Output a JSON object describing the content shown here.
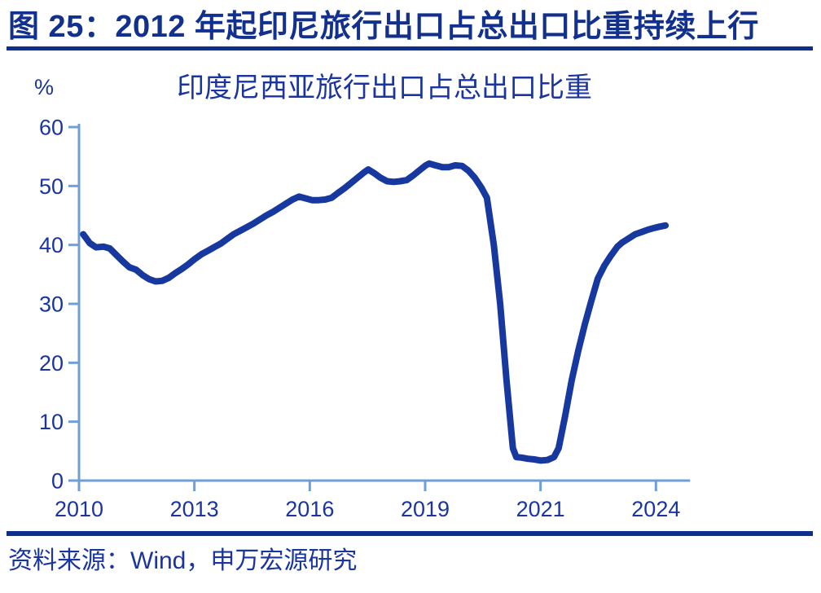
{
  "figure": {
    "header": "图 25：2012 年起印尼旅行出口占总出口比重持续上行",
    "source": "资料来源：Wind，申万宏源研究"
  },
  "colors": {
    "header_navy": "#12308e",
    "divider_navy": "#0c2e8c",
    "text_navy": "#1a35a0",
    "axis_blue": "#6f9fd8",
    "line_navy": "#16389f"
  },
  "chart_data": {
    "type": "line",
    "title": "印度尼西亚旅行出口占总出口比重",
    "unit_label": "%",
    "ylabel": "",
    "xlabel": "",
    "ylim": [
      0,
      60
    ],
    "y_ticks": [
      0,
      10,
      20,
      30,
      40,
      50,
      60
    ],
    "x_tick_labels": [
      "2010",
      "2013",
      "2016",
      "2019",
      "2021",
      "2024"
    ],
    "x_tick_years": [
      2010,
      2013,
      2016,
      2019,
      2021,
      2024
    ],
    "grid": false,
    "legend": "none",
    "series": [
      {
        "name": "印度尼西亚旅行出口占总出口比重",
        "points": [
          [
            2010.11,
            41.8
          ],
          [
            2010.28,
            40.3
          ],
          [
            2010.44,
            39.6
          ],
          [
            2010.64,
            39.7
          ],
          [
            2010.8,
            39.4
          ],
          [
            2010.97,
            38.3
          ],
          [
            2011.14,
            37.2
          ],
          [
            2011.31,
            36.2
          ],
          [
            2011.48,
            35.8
          ],
          [
            2011.65,
            34.9
          ],
          [
            2011.82,
            34.2
          ],
          [
            2011.99,
            33.8
          ],
          [
            2012.16,
            33.9
          ],
          [
            2012.33,
            34.4
          ],
          [
            2012.5,
            35.2
          ],
          [
            2012.67,
            35.9
          ],
          [
            2012.84,
            36.7
          ],
          [
            2013.01,
            37.6
          ],
          [
            2013.18,
            38.4
          ],
          [
            2013.35,
            39.0
          ],
          [
            2013.51,
            39.6
          ],
          [
            2013.68,
            40.2
          ],
          [
            2013.85,
            41.0
          ],
          [
            2014.02,
            41.8
          ],
          [
            2014.19,
            42.4
          ],
          [
            2014.36,
            43.0
          ],
          [
            2014.53,
            43.6
          ],
          [
            2014.7,
            44.3
          ],
          [
            2014.87,
            45.0
          ],
          [
            2015.04,
            45.6
          ],
          [
            2015.21,
            46.3
          ],
          [
            2015.38,
            47.0
          ],
          [
            2015.55,
            47.7
          ],
          [
            2015.72,
            48.2
          ],
          [
            2015.89,
            47.9
          ],
          [
            2016.06,
            47.6
          ],
          [
            2016.23,
            47.6
          ],
          [
            2016.4,
            47.7
          ],
          [
            2016.57,
            48.0
          ],
          [
            2016.73,
            48.8
          ],
          [
            2016.9,
            49.6
          ],
          [
            2017.07,
            50.5
          ],
          [
            2017.24,
            51.4
          ],
          [
            2017.41,
            52.3
          ],
          [
            2017.52,
            52.8
          ],
          [
            2017.67,
            52.2
          ],
          [
            2017.84,
            51.4
          ],
          [
            2018.01,
            50.8
          ],
          [
            2018.18,
            50.7
          ],
          [
            2018.35,
            50.8
          ],
          [
            2018.52,
            51.0
          ],
          [
            2018.69,
            51.8
          ],
          [
            2018.86,
            52.7
          ],
          [
            2019.01,
            53.5
          ],
          [
            2019.07,
            53.8
          ],
          [
            2019.18,
            53.5
          ],
          [
            2019.3,
            53.2
          ],
          [
            2019.41,
            53.2
          ],
          [
            2019.52,
            53.5
          ],
          [
            2019.64,
            53.4
          ],
          [
            2019.75,
            52.6
          ],
          [
            2019.86,
            51.4
          ],
          [
            2019.97,
            49.8
          ],
          [
            2020.07,
            48.0
          ],
          [
            2020.19,
            40.0
          ],
          [
            2020.3,
            30.0
          ],
          [
            2020.41,
            17.0
          ],
          [
            2020.52,
            5.5
          ],
          [
            2020.58,
            4.0
          ],
          [
            2020.67,
            3.9
          ],
          [
            2020.78,
            3.7
          ],
          [
            2020.89,
            3.6
          ],
          [
            2021.01,
            3.4
          ],
          [
            2021.18,
            3.5
          ],
          [
            2021.35,
            4.0
          ],
          [
            2021.47,
            5.5
          ],
          [
            2021.64,
            11.0
          ],
          [
            2021.81,
            17.0
          ],
          [
            2021.98,
            22.0
          ],
          [
            2022.15,
            26.5
          ],
          [
            2022.32,
            30.5
          ],
          [
            2022.49,
            34.3
          ],
          [
            2022.66,
            36.5
          ],
          [
            2022.83,
            38.2
          ],
          [
            2023.0,
            39.7
          ],
          [
            2023.12,
            40.4
          ],
          [
            2023.29,
            41.1
          ],
          [
            2023.46,
            41.8
          ],
          [
            2023.63,
            42.2
          ],
          [
            2023.8,
            42.6
          ],
          [
            2023.97,
            42.9
          ],
          [
            2024.1,
            43.1
          ],
          [
            2024.25,
            43.3
          ]
        ]
      }
    ]
  }
}
